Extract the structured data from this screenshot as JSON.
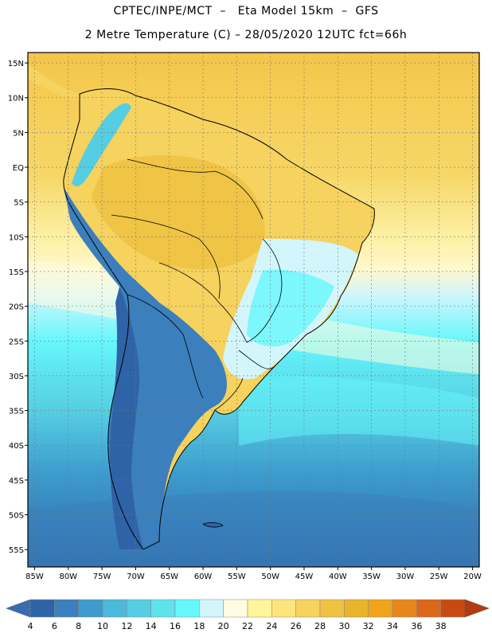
{
  "header": {
    "line1": "CPTEC/INPE/MCT  –   Eta Model 15km  –  GFS",
    "line2": "2 Metre Temperature (C) – 28/05/2020 12UTC fct=66h"
  },
  "map": {
    "lat_labels": [
      "15N",
      "10N",
      "5N",
      "EQ",
      "5S",
      "10S",
      "15S",
      "20S",
      "25S",
      "30S",
      "35S",
      "40S",
      "45S",
      "50S",
      "55S"
    ],
    "lon_labels": [
      "85W",
      "80W",
      "75W",
      "70W",
      "65W",
      "60W",
      "55W",
      "50W",
      "45W",
      "40W",
      "35W",
      "30W",
      "25W",
      "20W"
    ],
    "lat_values": [
      15,
      10,
      5,
      0,
      -5,
      -10,
      -15,
      -20,
      -25,
      -30,
      -35,
      -40,
      -45,
      -50,
      -55
    ],
    "lon_values": [
      -85,
      -80,
      -75,
      -70,
      -65,
      -60,
      -55,
      -50,
      -45,
      -40,
      -35,
      -30,
      -25,
      -20
    ],
    "extent": {
      "west": -86,
      "east": -19,
      "north": 16.5,
      "south": -57.5
    },
    "grid": true
  },
  "colorbar": {
    "labels": [
      "4",
      "6",
      "8",
      "10",
      "12",
      "14",
      "16",
      "18",
      "20",
      "22",
      "24",
      "26",
      "28",
      "30",
      "32",
      "34",
      "36",
      "38"
    ],
    "colors": [
      "#3a6db0",
      "#2f63a8",
      "#3b7fbd",
      "#3d9bcd",
      "#4cb8db",
      "#55cde2",
      "#5fe2ec",
      "#66f7fb",
      "#d2f6fc",
      "#fffbe0",
      "#fff59a",
      "#fde57c",
      "#f6d25e",
      "#efc242",
      "#e9b32a",
      "#f1a31a",
      "#e7861d",
      "#db681a",
      "#c84a12",
      "#b53a10"
    ]
  }
}
